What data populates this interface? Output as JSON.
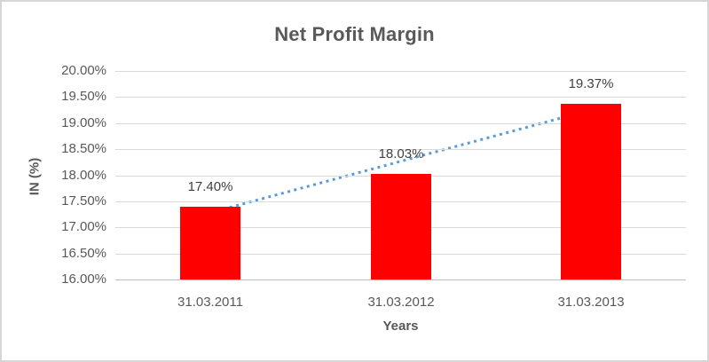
{
  "chart_data": {
    "type": "bar",
    "title": "Net Profit Margin",
    "xlabel": "Years",
    "ylabel": "IN (%)",
    "categories": [
      "31.03.2011",
      "31.03.2012",
      "31.03.2013"
    ],
    "values": [
      17.4,
      18.03,
      19.37
    ],
    "data_labels": [
      "17.40%",
      "18.03%",
      "19.37%"
    ],
    "ylim": [
      16,
      20
    ],
    "ytick_step": 0.5,
    "ytick_labels": [
      "20.00%",
      "19.50%",
      "19.00%",
      "18.50%",
      "18.00%",
      "17.50%",
      "17.00%",
      "16.50%",
      "16.00%"
    ],
    "grid": true,
    "legend": false,
    "bar_color": "#ff0000",
    "trendline": {
      "type": "linear",
      "style": "dotted",
      "color": "#5b9bd5"
    }
  },
  "colors": {
    "gridline": "#d9d9d9",
    "axis_line": "#bfbfbf",
    "text": "#595959",
    "data_label_text": "#404040",
    "frame_border": "#d6d6d6",
    "background": "#ffffff"
  }
}
